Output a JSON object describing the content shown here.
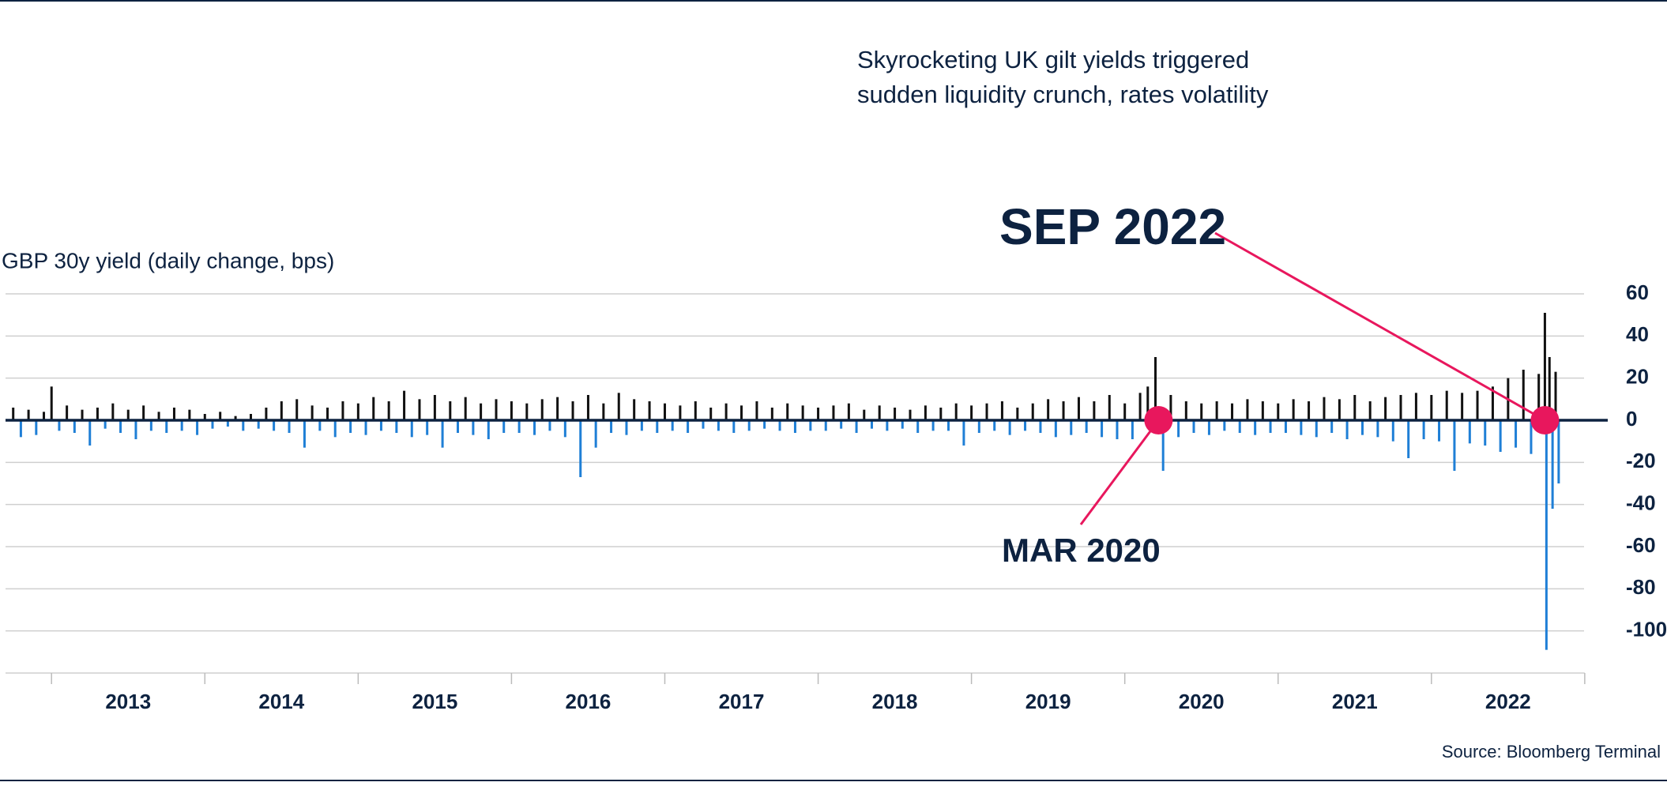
{
  "chart_data": {
    "type": "bar",
    "title_lines": [
      "Skyrocketing UK gilt yields triggered",
      "sudden liquidity crunch, rates volatility"
    ],
    "y_label": "GBP 30y yield (daily change, bps)",
    "source": "Source: Bloomberg Terminal",
    "color_positive": "#111111",
    "color_negative": "#1f7fd6",
    "zero_line_color": "#0d2240",
    "grid": true,
    "xlim": [
      2012.7,
      2023.15
    ],
    "ylim": [
      -120,
      60
    ],
    "yticks": [
      60,
      40,
      20,
      0,
      -20,
      -40,
      -60,
      -80,
      -100
    ],
    "xticks": [
      {
        "value": 2013.5,
        "label": "2013"
      },
      {
        "value": 2014.5,
        "label": "2014"
      },
      {
        "value": 2015.5,
        "label": "2015"
      },
      {
        "value": 2016.5,
        "label": "2016"
      },
      {
        "value": 2017.5,
        "label": "2017"
      },
      {
        "value": 2018.5,
        "label": "2018"
      },
      {
        "value": 2019.5,
        "label": "2019"
      },
      {
        "value": 2020.5,
        "label": "2020"
      },
      {
        "value": 2021.5,
        "label": "2021"
      },
      {
        "value": 2022.5,
        "label": "2022"
      }
    ],
    "x_boundaries": [
      2013,
      2014,
      2015,
      2016,
      2017,
      2018,
      2019,
      2020,
      2021,
      2022,
      2023
    ],
    "annotations": [
      {
        "text": "MAR 2020",
        "x": 2020.22,
        "y": 0
      },
      {
        "text": "SEP 2022",
        "x": 2022.74,
        "y": 0
      }
    ],
    "x": [
      2012.75,
      2012.8,
      2012.85,
      2012.9,
      2012.95,
      2013.0,
      2013.05,
      2013.1,
      2013.15,
      2013.2,
      2013.25,
      2013.3,
      2013.35,
      2013.4,
      2013.45,
      2013.5,
      2013.55,
      2013.6,
      2013.65,
      2013.7,
      2013.75,
      2013.8,
      2013.85,
      2013.9,
      2013.95,
      2014.0,
      2014.05,
      2014.1,
      2014.15,
      2014.2,
      2014.25,
      2014.3,
      2014.35,
      2014.4,
      2014.45,
      2014.5,
      2014.55,
      2014.6,
      2014.65,
      2014.7,
      2014.75,
      2014.8,
      2014.85,
      2014.9,
      2014.95,
      2015.0,
      2015.05,
      2015.1,
      2015.15,
      2015.2,
      2015.25,
      2015.3,
      2015.35,
      2015.4,
      2015.45,
      2015.5,
      2015.55,
      2015.6,
      2015.65,
      2015.7,
      2015.75,
      2015.8,
      2015.85,
      2015.9,
      2015.95,
      2016.0,
      2016.05,
      2016.1,
      2016.15,
      2016.2,
      2016.25,
      2016.3,
      2016.35,
      2016.4,
      2016.45,
      2016.5,
      2016.55,
      2016.6,
      2016.65,
      2016.7,
      2016.75,
      2016.8,
      2016.85,
      2016.9,
      2016.95,
      2017.0,
      2017.05,
      2017.1,
      2017.15,
      2017.2,
      2017.25,
      2017.3,
      2017.35,
      2017.4,
      2017.45,
      2017.5,
      2017.55,
      2017.6,
      2017.65,
      2017.7,
      2017.75,
      2017.8,
      2017.85,
      2017.9,
      2017.95,
      2018.0,
      2018.05,
      2018.1,
      2018.15,
      2018.2,
      2018.25,
      2018.3,
      2018.35,
      2018.4,
      2018.45,
      2018.5,
      2018.55,
      2018.6,
      2018.65,
      2018.7,
      2018.75,
      2018.8,
      2018.85,
      2018.9,
      2018.95,
      2019.0,
      2019.05,
      2019.1,
      2019.15,
      2019.2,
      2019.25,
      2019.3,
      2019.35,
      2019.4,
      2019.45,
      2019.5,
      2019.55,
      2019.6,
      2019.65,
      2019.7,
      2019.75,
      2019.8,
      2019.85,
      2019.9,
      2019.95,
      2020.0,
      2020.05,
      2020.1,
      2020.15,
      2020.2,
      2020.25,
      2020.3,
      2020.35,
      2020.4,
      2020.45,
      2020.5,
      2020.55,
      2020.6,
      2020.65,
      2020.7,
      2020.75,
      2020.8,
      2020.85,
      2020.9,
      2020.95,
      2021.0,
      2021.05,
      2021.1,
      2021.15,
      2021.2,
      2021.25,
      2021.3,
      2021.35,
      2021.4,
      2021.45,
      2021.5,
      2021.55,
      2021.6,
      2021.65,
      2021.7,
      2021.75,
      2021.8,
      2021.85,
      2021.9,
      2021.95,
      2022.0,
      2022.05,
      2022.1,
      2022.15,
      2022.2,
      2022.25,
      2022.3,
      2022.35,
      2022.4,
      2022.45,
      2022.5,
      2022.55,
      2022.6,
      2022.65,
      2022.7,
      2022.74,
      2022.75,
      2022.77,
      2022.79,
      2022.81,
      2022.83
    ],
    "values": [
      6,
      -8,
      5,
      -7,
      4,
      16,
      -5,
      7,
      -6,
      5,
      -12,
      6,
      -4,
      8,
      -6,
      5,
      -9,
      7,
      -5,
      4,
      -6,
      6,
      -5,
      5,
      -7,
      3,
      -4,
      4,
      -3,
      2,
      -5,
      3,
      -4,
      6,
      -5,
      9,
      -6,
      10,
      -13,
      7,
      -5,
      6,
      -8,
      9,
      -6,
      8,
      -7,
      11,
      -5,
      9,
      -6,
      14,
      -8,
      10,
      -7,
      12,
      -13,
      9,
      -6,
      11,
      -7,
      8,
      -9,
      10,
      -6,
      9,
      -6,
      8,
      -7,
      10,
      -5,
      11,
      -8,
      9,
      -27,
      12,
      -13,
      8,
      -6,
      13,
      -7,
      10,
      -5,
      9,
      -6,
      8,
      -5,
      7,
      -6,
      9,
      -4,
      6,
      -5,
      8,
      -6,
      7,
      -5,
      9,
      -4,
      6,
      -5,
      8,
      -6,
      7,
      -5,
      6,
      -5,
      7,
      -4,
      8,
      -6,
      5,
      -4,
      7,
      -5,
      6,
      -4,
      5,
      -6,
      7,
      -5,
      6,
      -5,
      8,
      -12,
      7,
      -6,
      8,
      -5,
      9,
      -7,
      6,
      -5,
      8,
      -6,
      10,
      -8,
      9,
      -7,
      11,
      -6,
      9,
      -8,
      12,
      -9,
      8,
      -9,
      13,
      16,
      30,
      -24,
      12,
      -8,
      9,
      -6,
      8,
      -7,
      9,
      -5,
      8,
      -6,
      10,
      -7,
      9,
      -6,
      8,
      -6,
      10,
      -7,
      9,
      -8,
      11,
      -6,
      10,
      -9,
      12,
      -7,
      9,
      -8,
      11,
      -10,
      12,
      -18,
      13,
      -9,
      12,
      -10,
      14,
      -24,
      13,
      -11,
      14,
      -12,
      16,
      -15,
      20,
      -13,
      24,
      -16,
      22,
      51,
      -109,
      30,
      -42,
      23,
      -30
    ]
  }
}
